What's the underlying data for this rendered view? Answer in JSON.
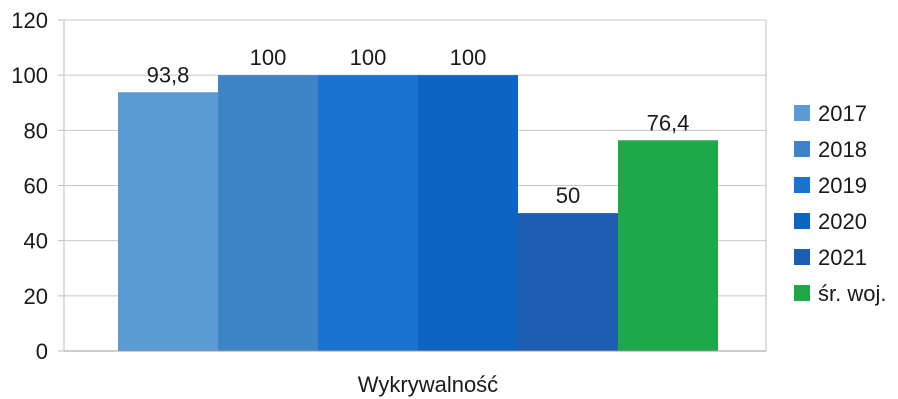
{
  "chart_data": {
    "type": "bar",
    "categories": [
      "Wykrywalność"
    ],
    "xlabel": "Wykrywalność",
    "ylabel": "",
    "ylim": [
      0,
      120
    ],
    "yticks": [
      0,
      20,
      40,
      60,
      80,
      100,
      120
    ],
    "grid": true,
    "legend": "right",
    "series": [
      {
        "name": "2017",
        "values": [
          93.8
        ],
        "label": "93,8",
        "color": "#5b9bd5"
      },
      {
        "name": "2018",
        "values": [
          100
        ],
        "label": "100",
        "color": "#3d85c6"
      },
      {
        "name": "2019",
        "values": [
          100
        ],
        "label": "100",
        "color": "#1a73cf"
      },
      {
        "name": "2020",
        "values": [
          100
        ],
        "label": "100",
        "color": "#0e64c0"
      },
      {
        "name": "2021",
        "values": [
          50
        ],
        "label": "50",
        "color": "#1c5fb0"
      },
      {
        "name": "śr. woj.",
        "values": [
          76.4
        ],
        "label": "76,4",
        "color": "#1ea84a"
      }
    ]
  }
}
